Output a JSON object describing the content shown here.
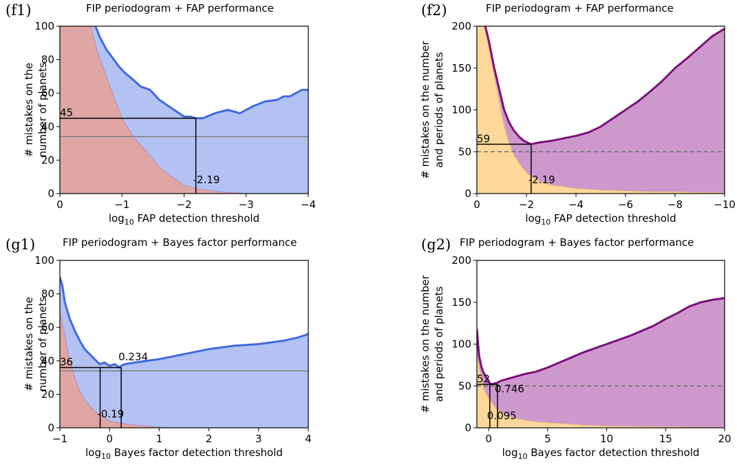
{
  "chart_data": [
    {
      "id": "f1",
      "type": "area",
      "panel_label": "(f1)",
      "title": "FIP periodogram + FAP performance",
      "xlabel_prefix": "log",
      "xlabel_sub": "10",
      "xlabel_suffix": " FAP detection threshold",
      "ylabel_lines": [
        "# mistakes on the",
        "number of planets"
      ],
      "xlim": [
        0,
        -4
      ],
      "ylim": [
        0,
        100
      ],
      "xticks": [
        0,
        -1,
        -2,
        -3,
        -4
      ],
      "xtick_labels": [
        "0",
        "−1",
        "−2",
        "−3",
        "−4"
      ],
      "yticks": [
        0,
        20,
        40,
        60,
        80,
        100
      ],
      "ytick_labels": [
        "0",
        "20",
        "40",
        "60",
        "80",
        "100"
      ],
      "colors": {
        "line": "#4169e1",
        "fill_top": "#b3c2f2",
        "fill_bottom": "#e0a5a5",
        "edge_bottom": "#a98fd0",
        "ref": "#808080"
      },
      "ref_line": {
        "y": 34,
        "style": "solid"
      },
      "series": [
        {
          "role": "total",
          "x": [
            0,
            -0.2,
            -0.4,
            -0.55,
            -0.65,
            -0.75,
            -0.85,
            -0.95,
            -1.05,
            -1.15,
            -1.3,
            -1.45,
            -1.6,
            -1.8,
            -2.0,
            -2.1,
            -2.19,
            -2.3,
            -2.5,
            -2.7,
            -2.9,
            -3.1,
            -3.3,
            -3.5,
            -3.6,
            -3.7,
            -3.8,
            -3.9,
            -4.0
          ],
          "y": [
            105,
            105,
            105,
            102,
            93,
            86,
            81,
            76,
            72,
            69,
            64,
            62,
            56,
            51,
            46,
            46,
            45,
            45,
            48,
            50,
            48,
            52,
            55,
            56,
            58,
            58,
            60,
            62,
            62
          ]
        },
        {
          "role": "component",
          "x": [
            0,
            -0.3,
            -0.5,
            -0.6,
            -0.7,
            -0.8,
            -0.9,
            -1.0,
            -1.2,
            -1.4,
            -1.6,
            -1.8,
            -2.0,
            -2.2,
            -2.4,
            -2.6,
            -2.8,
            -3.0,
            -4.0
          ],
          "y": [
            105,
            105,
            100,
            85,
            75,
            65,
            55,
            45,
            33,
            25,
            16,
            10,
            5,
            3,
            2,
            1,
            0.5,
            0,
            0
          ]
        }
      ],
      "markers": {
        "x": -2.19,
        "y": 45
      },
      "annotations": [
        {
          "text": "45",
          "x": 0,
          "y": 45
        },
        {
          "text": "-2.19",
          "x": -2.19,
          "y": 5
        }
      ]
    },
    {
      "id": "f2",
      "type": "area",
      "panel_label": "(f2)",
      "title": "FIP periodogram + FAP performance",
      "xlabel_prefix": "log",
      "xlabel_sub": "10",
      "xlabel_suffix": " FAP detection threshold",
      "ylabel_lines": [
        "# mistakes on the number",
        "and periods of planets"
      ],
      "xlim": [
        0,
        -10
      ],
      "ylim": [
        0,
        200
      ],
      "xticks": [
        0,
        -2,
        -4,
        -6,
        -8,
        -10
      ],
      "xtick_labels": [
        "0",
        "−2",
        "−4",
        "−6",
        "−8",
        "−10"
      ],
      "yticks": [
        0,
        50,
        100,
        150,
        200
      ],
      "ytick_labels": [
        "0",
        "50",
        "100",
        "150",
        "200"
      ],
      "colors": {
        "line": "#7b0f7b",
        "fill_top": "#cd99cd",
        "fill_bottom": "#fdd89a",
        "edge_bottom": "#f0c080",
        "ref": "#707070"
      },
      "ref_line": {
        "y": 50,
        "style": "dashed"
      },
      "series": [
        {
          "role": "total",
          "x": [
            0,
            -0.3,
            -0.5,
            -0.7,
            -0.9,
            -1.1,
            -1.3,
            -1.5,
            -1.7,
            -1.9,
            -2.19,
            -2.5,
            -3.0,
            -3.5,
            -4.0,
            -4.5,
            -5.0,
            -5.5,
            -6.0,
            -6.5,
            -7.0,
            -7.5,
            -8.0,
            -8.5,
            -9.0,
            -9.5,
            -10.0
          ],
          "y": [
            205,
            205,
            180,
            150,
            125,
            100,
            85,
            75,
            68,
            63,
            59,
            61,
            63,
            66,
            69,
            73,
            80,
            90,
            100,
            110,
            122,
            135,
            150,
            162,
            175,
            188,
            197
          ]
        },
        {
          "role": "component",
          "x": [
            0,
            -0.3,
            -0.5,
            -0.7,
            -0.9,
            -1.1,
            -1.3,
            -1.5,
            -1.8,
            -2.1,
            -2.5,
            -3.0,
            -3.5,
            -4.0,
            -5.0,
            -6.0,
            -7.0,
            -8.0,
            -9.0,
            -10.0
          ],
          "y": [
            205,
            200,
            170,
            140,
            110,
            80,
            60,
            45,
            32,
            22,
            15,
            10,
            8,
            6,
            4,
            3,
            2,
            2,
            1,
            1
          ]
        }
      ],
      "markers": {
        "x": -2.19,
        "y": 59
      },
      "annotations": [
        {
          "text": "59",
          "x": 0,
          "y": 59
        },
        {
          "text": "-2.19",
          "x": -2.19,
          "y": 10
        }
      ]
    },
    {
      "id": "g1",
      "type": "area",
      "panel_label": "(g1)",
      "title": "FIP periodogram + Bayes factor performance",
      "xlabel_prefix": "log",
      "xlabel_sub": "10",
      "xlabel_suffix": " Bayes factor detection threshold",
      "ylabel_lines": [
        "# mistakes on the",
        "number of planets"
      ],
      "xlim": [
        -1,
        4
      ],
      "ylim": [
        0,
        100
      ],
      "xticks": [
        -1,
        0,
        1,
        2,
        3,
        4
      ],
      "xtick_labels": [
        "−1",
        "0",
        "1",
        "2",
        "3",
        "4"
      ],
      "yticks": [
        0,
        20,
        40,
        60,
        80,
        100
      ],
      "ytick_labels": [
        "0",
        "20",
        "40",
        "60",
        "80",
        "100"
      ],
      "colors": {
        "line": "#4169e1",
        "fill_top": "#b3c2f2",
        "fill_bottom": "#e0a5a5",
        "edge_bottom": "#a98fd0",
        "ref": "#808080"
      },
      "ref_line": {
        "y": 34,
        "style": "solid"
      },
      "series": [
        {
          "role": "total",
          "x": [
            -1,
            -0.95,
            -0.9,
            -0.8,
            -0.7,
            -0.6,
            -0.5,
            -0.4,
            -0.3,
            -0.2,
            -0.1,
            0,
            0.1,
            0.2,
            0.234,
            0.3,
            0.5,
            1.0,
            1.5,
            2.0,
            2.5,
            3.0,
            3.5,
            3.8,
            4.0
          ],
          "y": [
            90,
            85,
            75,
            65,
            58,
            52,
            47,
            44,
            41,
            38,
            39,
            37,
            38,
            36,
            37,
            38,
            39,
            41,
            44,
            47,
            49,
            50,
            52,
            54,
            56
          ]
        },
        {
          "role": "component",
          "x": [
            -1,
            -0.9,
            -0.8,
            -0.7,
            -0.6,
            -0.5,
            -0.4,
            -0.3,
            -0.2,
            -0.1,
            0,
            0.2,
            0.4,
            0.6,
            0.8,
            1.0,
            1.2,
            4.0
          ],
          "y": [
            70,
            55,
            40,
            30,
            22,
            17,
            13,
            10,
            8,
            6,
            4,
            3,
            2,
            1.5,
            1,
            0.5,
            0,
            0
          ]
        }
      ],
      "markers": {
        "x1": -0.19,
        "x2": 0.234,
        "y": 36
      },
      "annotations": [
        {
          "text": "36",
          "x": -1,
          "y": 36
        },
        {
          "text": "0.234",
          "x": 0.234,
          "y": 39
        },
        {
          "text": "-0.19",
          "x": -0.19,
          "y": 5
        }
      ]
    },
    {
      "id": "g2",
      "type": "area",
      "panel_label": "(g2)",
      "title": "FIP periodogram + Bayes factor performance",
      "xlabel_prefix": "log",
      "xlabel_sub": "10",
      "xlabel_suffix": " Bayes factor detection threshold",
      "ylabel_lines": [
        "# mistakes on the number",
        "and periods of planets"
      ],
      "xlim": [
        -1,
        20
      ],
      "ylim": [
        0,
        200
      ],
      "xticks": [
        0,
        5,
        10,
        15,
        20
      ],
      "xtick_labels": [
        "0",
        "5",
        "10",
        "15",
        "20"
      ],
      "yticks": [
        0,
        50,
        100,
        150,
        200
      ],
      "ytick_labels": [
        "0",
        "50",
        "100",
        "150",
        "200"
      ],
      "colors": {
        "line": "#7b0f7b",
        "fill_top": "#cd99cd",
        "fill_bottom": "#fdd89a",
        "edge_bottom": "#f0c080",
        "ref": "#707070"
      },
      "ref_line": {
        "y": 50,
        "style": "dashed"
      },
      "series": [
        {
          "role": "total",
          "x": [
            -1,
            -0.9,
            -0.8,
            -0.6,
            -0.4,
            -0.2,
            0,
            0.1,
            0.3,
            0.5,
            0.746,
            1,
            2,
            3,
            4,
            5,
            6,
            7,
            8,
            9,
            10,
            11,
            12,
            13,
            14,
            15,
            16,
            17,
            18,
            19,
            20
          ],
          "y": [
            118,
            100,
            85,
            72,
            65,
            60,
            56,
            53,
            52,
            53,
            54,
            56,
            60,
            64,
            67,
            72,
            78,
            84,
            90,
            95,
            100,
            105,
            110,
            116,
            122,
            130,
            137,
            145,
            150,
            153,
            155
          ]
        },
        {
          "role": "component",
          "x": [
            -1,
            -0.8,
            -0.6,
            -0.4,
            -0.2,
            0,
            0.5,
            1,
            2,
            3,
            4,
            5,
            6,
            7,
            8,
            10,
            12,
            14,
            16,
            18,
            20
          ],
          "y": [
            90,
            70,
            55,
            45,
            40,
            35,
            25,
            18,
            12,
            9,
            7,
            6,
            5,
            4,
            3,
            2,
            1.5,
            1,
            1,
            0.5,
            0.5
          ]
        }
      ],
      "markers": {
        "x1": 0.095,
        "x2": 0.746,
        "y": 52
      },
      "annotations": [
        {
          "text": "52",
          "x": -1,
          "y": 52
        },
        {
          "text": "0.746",
          "x": 0.746,
          "y": 40
        },
        {
          "text": "0.095",
          "x": 0.095,
          "y": 8
        }
      ]
    }
  ]
}
